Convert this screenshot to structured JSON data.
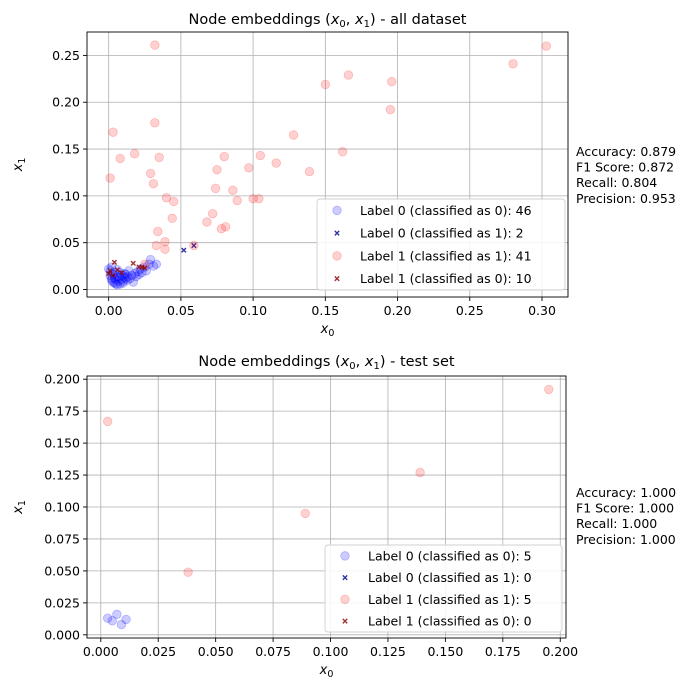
{
  "chart_data": [
    {
      "type": "scatter",
      "title_pre": "Node embeddings (",
      "title_math": "x",
      "title_sub0": "0",
      "title_mid": ", ",
      "title_sub1": "1",
      "title_post": ") - all dataset",
      "xlabel": "x",
      "xlabel_sub": "0",
      "ylabel": "x",
      "ylabel_sub": "1",
      "xlim": [
        -0.015,
        0.318
      ],
      "ylim": [
        -0.008,
        0.275
      ],
      "xticks": [
        "0.00",
        "0.05",
        "0.10",
        "0.15",
        "0.20",
        "0.25",
        "0.30"
      ],
      "xtick_values": [
        0,
        0.05,
        0.1,
        0.15,
        0.2,
        0.25,
        0.3
      ],
      "yticks": [
        "0.00",
        "0.05",
        "0.10",
        "0.15",
        "0.20",
        "0.25"
      ],
      "ytick_values": [
        0,
        0.05,
        0.1,
        0.15,
        0.2,
        0.25
      ],
      "grid": true,
      "legend_position": "lower-right",
      "legend": [
        "Label 0 (classified as 0): 46",
        "Label 0 (classified as 1): 2",
        "Label 1 (classified as 1): 41",
        "Label 1 (classified as 0): 10"
      ],
      "metrics": [
        "Accuracy: 0.879",
        "F1 Score: 0.872",
        "Recall: 0.804",
        "Precision: 0.953"
      ],
      "series": [
        {
          "marker": "circle",
          "color": "#0000ff",
          "alpha": 0.2,
          "points": [
            [
              0.0,
              0.022
            ],
            [
              0.001,
              0.015
            ],
            [
              0.002,
              0.01
            ],
            [
              0.003,
              0.008
            ],
            [
              0.004,
              0.012
            ],
            [
              0.005,
              0.006
            ],
            [
              0.006,
              0.014
            ],
            [
              0.007,
              0.009
            ],
            [
              0.008,
              0.018
            ],
            [
              0.009,
              0.011
            ],
            [
              0.01,
              0.007
            ],
            [
              0.011,
              0.013
            ],
            [
              0.012,
              0.016
            ],
            [
              0.013,
              0.01
            ],
            [
              0.014,
              0.02
            ],
            [
              0.015,
              0.012
            ],
            [
              0.016,
              0.015
            ],
            [
              0.017,
              0.008
            ],
            [
              0.018,
              0.017
            ],
            [
              0.019,
              0.014
            ],
            [
              0.02,
              0.019
            ],
            [
              0.021,
              0.016
            ],
            [
              0.022,
              0.022
            ],
            [
              0.023,
              0.018
            ],
            [
              0.025,
              0.024
            ],
            [
              0.026,
              0.02
            ],
            [
              0.028,
              0.027
            ],
            [
              0.029,
              0.032
            ],
            [
              0.031,
              0.025
            ],
            [
              0.033,
              0.027
            ],
            [
              0.001,
              0.02
            ],
            [
              0.002,
              0.012
            ],
            [
              0.003,
              0.016
            ],
            [
              0.004,
              0.007
            ],
            [
              0.005,
              0.011
            ],
            [
              0.006,
              0.005
            ],
            [
              0.007,
              0.013
            ],
            [
              0.008,
              0.006
            ],
            [
              0.009,
              0.015
            ],
            [
              0.01,
              0.009
            ],
            [
              0.011,
              0.017
            ],
            [
              0.012,
              0.012
            ],
            [
              0.013,
              0.014
            ],
            [
              0.002,
              0.024
            ],
            [
              0.004,
              0.018
            ],
            [
              0.006,
              0.021
            ]
          ]
        },
        {
          "marker": "x",
          "color": "#00008b",
          "alpha": 0.8,
          "points": [
            [
              0.052,
              0.042
            ],
            [
              0.059,
              0.047
            ]
          ]
        },
        {
          "marker": "circle",
          "color": "#ff0000",
          "alpha": 0.18,
          "points": [
            [
              0.032,
              0.261
            ],
            [
              0.303,
              0.26
            ],
            [
              0.166,
              0.229
            ],
            [
              0.15,
              0.219
            ],
            [
              0.196,
              0.222
            ],
            [
              0.28,
              0.241
            ],
            [
              0.195,
              0.192
            ],
            [
              0.032,
              0.178
            ],
            [
              0.003,
              0.168
            ],
            [
              0.128,
              0.165
            ],
            [
              0.162,
              0.147
            ],
            [
              0.018,
              0.145
            ],
            [
              0.008,
              0.14
            ],
            [
              0.035,
              0.141
            ],
            [
              0.08,
              0.142
            ],
            [
              0.105,
              0.143
            ],
            [
              0.116,
              0.135
            ],
            [
              0.097,
              0.13
            ],
            [
              0.075,
              0.128
            ],
            [
              0.001,
              0.119
            ],
            [
              0.029,
              0.124
            ],
            [
              0.031,
              0.113
            ],
            [
              0.139,
              0.126
            ],
            [
              0.074,
              0.108
            ],
            [
              0.086,
              0.106
            ],
            [
              0.04,
              0.098
            ],
            [
              0.045,
              0.094
            ],
            [
              0.089,
              0.095
            ],
            [
              0.1,
              0.097
            ],
            [
              0.104,
              0.097
            ],
            [
              0.072,
              0.081
            ],
            [
              0.068,
              0.072
            ],
            [
              0.044,
              0.076
            ],
            [
              0.078,
              0.065
            ],
            [
              0.081,
              0.067
            ],
            [
              0.034,
              0.062
            ],
            [
              0.039,
              0.051
            ],
            [
              0.033,
              0.047
            ],
            [
              0.039,
              0.043
            ],
            [
              0.059,
              0.047
            ],
            [
              0.025,
              0.027
            ]
          ]
        },
        {
          "marker": "x",
          "color": "#8b0000",
          "alpha": 0.8,
          "points": [
            [
              0.0,
              0.017
            ],
            [
              0.001,
              0.02
            ],
            [
              0.003,
              0.015
            ],
            [
              0.004,
              0.029
            ],
            [
              0.006,
              0.021
            ],
            [
              0.009,
              0.018
            ],
            [
              0.017,
              0.028
            ],
            [
              0.021,
              0.024
            ],
            [
              0.023,
              0.024
            ],
            [
              0.025,
              0.023
            ]
          ]
        }
      ]
    },
    {
      "type": "scatter",
      "title_pre": "Node embeddings (",
      "title_math": "x",
      "title_sub0": "0",
      "title_mid": ", ",
      "title_sub1": "1",
      "title_post": ") - test set",
      "xlabel": "x",
      "xlabel_sub": "0",
      "ylabel": "x",
      "ylabel_sub": "1",
      "xlim": [
        -0.006,
        0.2025
      ],
      "ylim": [
        -0.0025,
        0.2025
      ],
      "xticks": [
        "0.000",
        "0.025",
        "0.050",
        "0.075",
        "0.100",
        "0.125",
        "0.150",
        "0.175",
        "0.200"
      ],
      "xtick_values": [
        0,
        0.025,
        0.05,
        0.075,
        0.1,
        0.125,
        0.15,
        0.175,
        0.2
      ],
      "yticks": [
        "0.000",
        "0.025",
        "0.050",
        "0.075",
        "0.100",
        "0.125",
        "0.150",
        "0.175",
        "0.200"
      ],
      "ytick_values": [
        0,
        0.025,
        0.05,
        0.075,
        0.1,
        0.125,
        0.15,
        0.175,
        0.2
      ],
      "grid": true,
      "legend_position": "lower-right",
      "legend": [
        "Label 0 (classified as 0): 5",
        "Label 0 (classified as 1): 0",
        "Label 1 (classified as 1): 5",
        "Label 1 (classified as 0): 0"
      ],
      "metrics": [
        "Accuracy: 1.000",
        "F1 Score: 1.000",
        "Recall: 1.000",
        "Precision: 1.000"
      ],
      "series": [
        {
          "marker": "circle",
          "color": "#0000ff",
          "alpha": 0.2,
          "points": [
            [
              0.003,
              0.013
            ],
            [
              0.005,
              0.011
            ],
            [
              0.007,
              0.016
            ],
            [
              0.009,
              0.008
            ],
            [
              0.011,
              0.012
            ]
          ]
        },
        {
          "marker": "x",
          "color": "#00008b",
          "alpha": 0.8,
          "points": []
        },
        {
          "marker": "circle",
          "color": "#ff0000",
          "alpha": 0.18,
          "points": [
            [
              0.003,
              0.167
            ],
            [
              0.038,
              0.049
            ],
            [
              0.089,
              0.095
            ],
            [
              0.139,
              0.127
            ],
            [
              0.195,
              0.192
            ]
          ]
        },
        {
          "marker": "x",
          "color": "#8b0000",
          "alpha": 0.8,
          "points": []
        }
      ]
    }
  ]
}
